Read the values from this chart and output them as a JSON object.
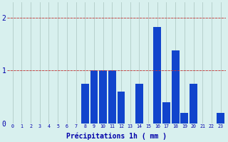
{
  "categories": [
    0,
    1,
    2,
    3,
    4,
    5,
    6,
    7,
    8,
    9,
    10,
    11,
    12,
    13,
    14,
    15,
    16,
    17,
    18,
    19,
    20,
    21,
    22,
    23
  ],
  "values": [
    0,
    0,
    0,
    0,
    0,
    0,
    0,
    0,
    0.75,
    1.0,
    1.0,
    1.0,
    0.6,
    0,
    0.75,
    0,
    1.82,
    0.4,
    1.38,
    0.2,
    0.75,
    0,
    0,
    0.2
  ],
  "bar_color": "#1144cc",
  "bg_color": "#d8f0ee",
  "grid_color": "#aac4c0",
  "xlabel": "Précipitations 1h ( mm )",
  "xlabel_color": "#0000aa",
  "tick_color": "#0000aa",
  "ylim": [
    0,
    2.3
  ],
  "yticks": [
    0,
    1,
    2
  ],
  "bar_width": 0.85
}
